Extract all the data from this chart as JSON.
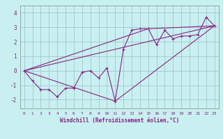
{
  "xlabel": "Windchill (Refroidissement éolien,°C)",
  "ylabel": "",
  "bg_color": "#c8f0f0",
  "grid_color": "#a0c8c8",
  "line_color": "#882288",
  "marker": "+",
  "xlim": [
    -0.5,
    23.5
  ],
  "ylim": [
    -2.6,
    4.5
  ],
  "xticks": [
    0,
    1,
    2,
    3,
    4,
    5,
    6,
    7,
    8,
    9,
    10,
    11,
    12,
    13,
    14,
    15,
    16,
    17,
    18,
    19,
    20,
    21,
    22,
    23
  ],
  "yticks": [
    -2,
    -1,
    0,
    1,
    2,
    3,
    4
  ],
  "series": [
    [
      0,
      0.0
    ],
    [
      1,
      -0.7
    ],
    [
      2,
      -1.3
    ],
    [
      3,
      -1.3
    ],
    [
      4,
      -1.8
    ],
    [
      5,
      -1.2
    ],
    [
      6,
      -1.2
    ],
    [
      7,
      -0.1
    ],
    [
      8,
      0.0
    ],
    [
      9,
      -0.5
    ],
    [
      10,
      0.2
    ],
    [
      11,
      -2.1
    ],
    [
      12,
      1.5
    ],
    [
      13,
      2.8
    ],
    [
      14,
      2.9
    ],
    [
      15,
      2.9
    ],
    [
      16,
      1.8
    ],
    [
      17,
      2.8
    ],
    [
      18,
      2.2
    ],
    [
      19,
      2.4
    ],
    [
      20,
      2.4
    ],
    [
      21,
      2.5
    ],
    [
      22,
      3.7
    ],
    [
      23,
      3.1
    ]
  ],
  "line2": [
    [
      0,
      0.0
    ],
    [
      23,
      3.1
    ]
  ],
  "extra_lines": [
    [
      [
        0,
        0.0
      ],
      [
        11,
        -2.1
      ],
      [
        23,
        3.1
      ]
    ],
    [
      [
        0,
        0.0
      ],
      [
        15,
        2.9
      ],
      [
        23,
        3.1
      ]
    ]
  ]
}
